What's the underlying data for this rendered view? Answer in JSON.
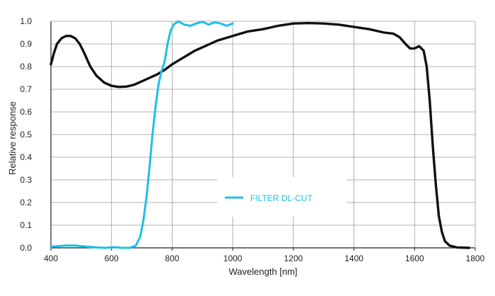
{
  "chart_data": {
    "type": "line",
    "title": "",
    "xlabel": "Wavelength [nm]",
    "ylabel": "Relative response",
    "xlim": [
      400,
      1800
    ],
    "ylim": [
      0,
      1.0
    ],
    "x_ticks": [
      400,
      600,
      800,
      1000,
      1200,
      1400,
      1600,
      1800
    ],
    "x_tick_labels": [
      "400",
      "600",
      "800",
      "1000",
      "1200",
      "1400",
      "1600",
      "1800"
    ],
    "y_ticks": [
      0,
      0.1,
      0.2,
      0.3,
      0.4,
      0.5,
      0.6,
      0.7,
      0.8,
      0.9,
      1.0
    ],
    "y_tick_labels": [
      "0.0",
      "0.1",
      "0.2",
      "0.3",
      "0.4",
      "0.5",
      "0.6",
      "0.7",
      "0.8",
      "0.9",
      "1.0"
    ],
    "grid": true,
    "legend_position": "center-right",
    "series": [
      {
        "color": "#111111",
        "points": [
          [
            400,
            0.81
          ],
          [
            410,
            0.86
          ],
          [
            420,
            0.9
          ],
          [
            435,
            0.925
          ],
          [
            450,
            0.935
          ],
          [
            465,
            0.935
          ],
          [
            480,
            0.925
          ],
          [
            495,
            0.9
          ],
          [
            510,
            0.86
          ],
          [
            530,
            0.8
          ],
          [
            550,
            0.76
          ],
          [
            575,
            0.73
          ],
          [
            600,
            0.715
          ],
          [
            625,
            0.71
          ],
          [
            650,
            0.712
          ],
          [
            675,
            0.72
          ],
          [
            700,
            0.735
          ],
          [
            725,
            0.75
          ],
          [
            750,
            0.765
          ],
          [
            775,
            0.785
          ],
          [
            800,
            0.81
          ],
          [
            825,
            0.83
          ],
          [
            850,
            0.85
          ],
          [
            875,
            0.87
          ],
          [
            900,
            0.885
          ],
          [
            925,
            0.9
          ],
          [
            950,
            0.915
          ],
          [
            975,
            0.925
          ],
          [
            1000,
            0.935
          ],
          [
            1050,
            0.955
          ],
          [
            1100,
            0.965
          ],
          [
            1150,
            0.98
          ],
          [
            1200,
            0.99
          ],
          [
            1250,
            0.992
          ],
          [
            1300,
            0.99
          ],
          [
            1350,
            0.985
          ],
          [
            1400,
            0.975
          ],
          [
            1450,
            0.965
          ],
          [
            1500,
            0.95
          ],
          [
            1530,
            0.945
          ],
          [
            1550,
            0.93
          ],
          [
            1570,
            0.9
          ],
          [
            1585,
            0.88
          ],
          [
            1600,
            0.88
          ],
          [
            1615,
            0.89
          ],
          [
            1630,
            0.87
          ],
          [
            1640,
            0.8
          ],
          [
            1650,
            0.65
          ],
          [
            1660,
            0.45
          ],
          [
            1670,
            0.28
          ],
          [
            1680,
            0.14
          ],
          [
            1690,
            0.07
          ],
          [
            1700,
            0.03
          ],
          [
            1715,
            0.01
          ],
          [
            1740,
            0.002
          ],
          [
            1780,
            0.0
          ]
        ]
      },
      {
        "name": "FILTER DL-CUT",
        "color": "#1ec0e6",
        "points": [
          [
            400,
            0.005
          ],
          [
            450,
            0.01
          ],
          [
            480,
            0.01
          ],
          [
            520,
            0.005
          ],
          [
            550,
            0.002
          ],
          [
            580,
            0.0
          ],
          [
            610,
            0.003
          ],
          [
            635,
            0.0
          ],
          [
            660,
            0.0
          ],
          [
            680,
            0.01
          ],
          [
            695,
            0.05
          ],
          [
            705,
            0.12
          ],
          [
            715,
            0.22
          ],
          [
            725,
            0.35
          ],
          [
            735,
            0.5
          ],
          [
            745,
            0.62
          ],
          [
            755,
            0.72
          ],
          [
            765,
            0.78
          ],
          [
            775,
            0.82
          ],
          [
            785,
            0.9
          ],
          [
            795,
            0.96
          ],
          [
            805,
            0.985
          ],
          [
            820,
            1.0
          ],
          [
            840,
            0.985
          ],
          [
            860,
            0.98
          ],
          [
            880,
            0.99
          ],
          [
            900,
            0.998
          ],
          [
            920,
            0.985
          ],
          [
            940,
            0.995
          ],
          [
            960,
            0.99
          ],
          [
            980,
            0.98
          ],
          [
            1000,
            0.99
          ]
        ]
      }
    ]
  }
}
